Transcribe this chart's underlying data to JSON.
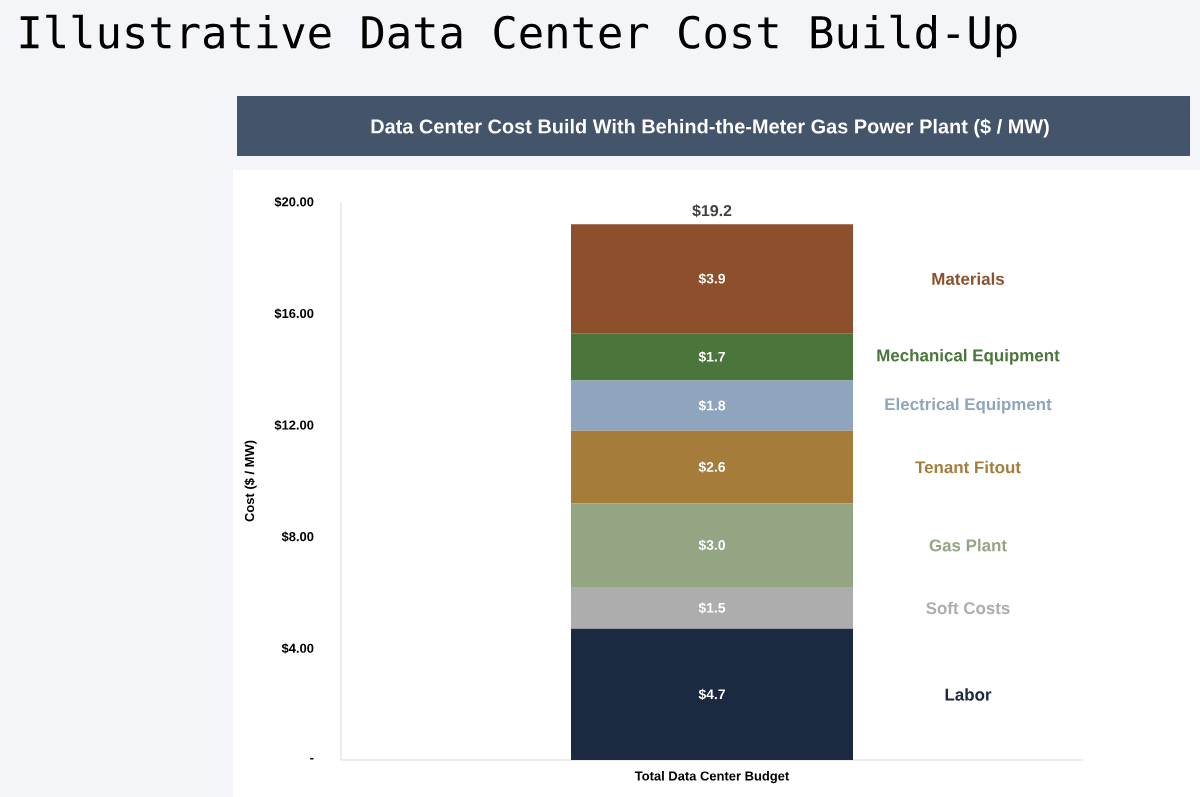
{
  "chart_data": {
    "type": "bar",
    "stacked": true,
    "title": "Illustrative Data Center Cost Build-Up",
    "subtitle": "Data Center Cost Build With Behind-the-Meter Gas Power Plant ($ / MW)",
    "ylabel": "Cost ($ / MW)",
    "categories": [
      "Total Data Center Budget"
    ],
    "series": [
      {
        "name": "Labor",
        "color": "#1b2a41",
        "values": [
          4.7
        ],
        "value_labels": [
          "$4.7"
        ]
      },
      {
        "name": "Soft Costs",
        "color": "#adadad",
        "values": [
          1.5
        ],
        "value_labels": [
          "$1.5"
        ]
      },
      {
        "name": "Gas Plant",
        "color": "#94a584",
        "values": [
          3.0
        ],
        "value_labels": [
          "$3.0"
        ]
      },
      {
        "name": "Tenant Fitout",
        "color": "#a67c3a",
        "values": [
          2.6
        ],
        "value_labels": [
          "$2.6"
        ]
      },
      {
        "name": "Electrical Equipment",
        "color": "#8fa4bd",
        "values": [
          1.8
        ],
        "value_labels": [
          "$1.8"
        ]
      },
      {
        "name": "Mechanical Equipment",
        "color": "#4a753b",
        "values": [
          1.7
        ],
        "value_labels": [
          "$1.7"
        ]
      },
      {
        "name": "Materials",
        "color": "#8e502c",
        "values": [
          3.9
        ],
        "value_labels": [
          "$3.9"
        ]
      }
    ],
    "totals": [
      "$19.2"
    ],
    "ylim": [
      0,
      20
    ],
    "yticks": [
      {
        "value": 0,
        "label": "-"
      },
      {
        "value": 4,
        "label": "$4.00"
      },
      {
        "value": 8,
        "label": "$8.00"
      },
      {
        "value": 12,
        "label": "$12.00"
      },
      {
        "value": 16,
        "label": "$16.00"
      },
      {
        "value": 20,
        "label": "$20.00"
      }
    ]
  }
}
